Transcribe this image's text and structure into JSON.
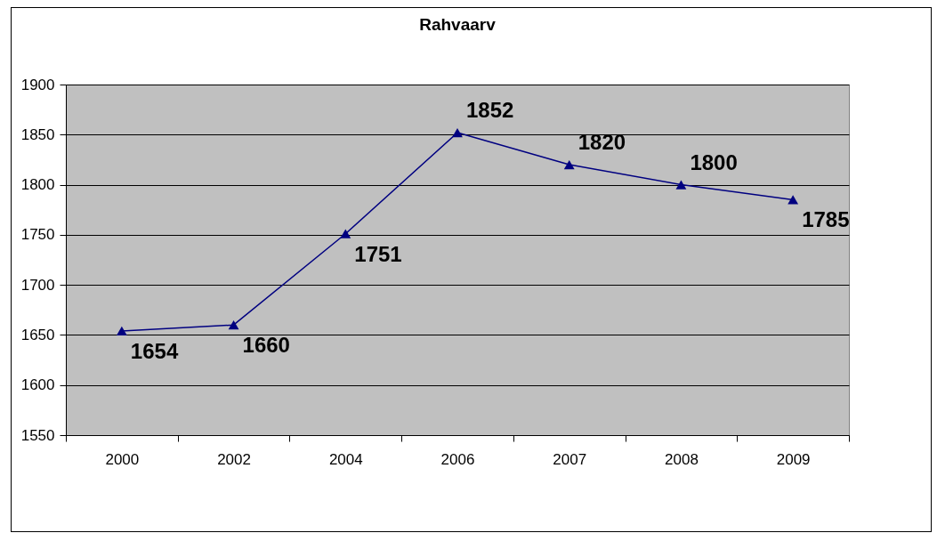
{
  "chart_data": {
    "type": "line",
    "title": "Rahvaarv",
    "categories": [
      "2000",
      "2002",
      "2004",
      "2006",
      "2007",
      "2008",
      "2009"
    ],
    "series": [
      {
        "color": "#000080",
        "values": [
          1654,
          1660,
          1751,
          1852,
          1820,
          1800,
          1785
        ]
      }
    ],
    "ylim": [
      1550,
      1900
    ],
    "yticks": [
      1550,
      1600,
      1650,
      1700,
      1750,
      1800,
      1850,
      1900
    ],
    "grid": "y",
    "marker": "triangle",
    "line_style": "solid",
    "data_labels": true,
    "legend": false
  }
}
